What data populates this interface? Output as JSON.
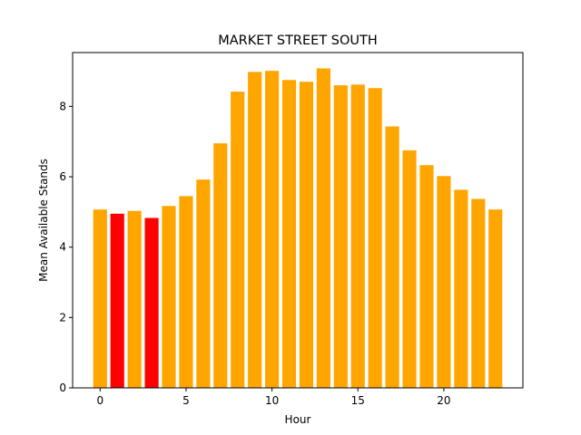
{
  "chart_data": {
    "type": "bar",
    "title": "MARKET STREET SOUTH",
    "xlabel": "Hour",
    "ylabel": "Mean Available Stands",
    "x": [
      0,
      1,
      2,
      3,
      4,
      5,
      6,
      7,
      8,
      9,
      10,
      11,
      12,
      13,
      14,
      15,
      16,
      17,
      18,
      19,
      20,
      21,
      22,
      23
    ],
    "values": [
      5.07,
      4.95,
      5.03,
      4.83,
      5.17,
      5.45,
      5.92,
      6.95,
      8.42,
      8.98,
      9.01,
      8.75,
      8.7,
      9.08,
      8.6,
      8.62,
      8.52,
      7.43,
      6.75,
      6.33,
      6.02,
      5.63,
      5.37,
      5.07
    ],
    "bar_colors": [
      "#FFA500",
      "#FF0000",
      "#FFA500",
      "#FF0000",
      "#FFA500",
      "#FFA500",
      "#FFA500",
      "#FFA500",
      "#FFA500",
      "#FFA500",
      "#FFA500",
      "#FFA500",
      "#FFA500",
      "#FFA500",
      "#FFA500",
      "#FFA500",
      "#FFA500",
      "#FFA500",
      "#FFA500",
      "#FFA500",
      "#FFA500",
      "#FFA500",
      "#FFA500",
      "#FFA500"
    ],
    "xlim": [
      -1.6,
      24.6
    ],
    "ylim": [
      0,
      9.53
    ],
    "xticks": [
      0,
      5,
      10,
      15,
      20
    ],
    "yticks": [
      0,
      2,
      4,
      6,
      8
    ],
    "xtick_labels": [
      "0",
      "5",
      "10",
      "15",
      "20"
    ],
    "ytick_labels": [
      "0",
      "2",
      "4",
      "6",
      "8"
    ],
    "grid": false,
    "legend": "none"
  }
}
